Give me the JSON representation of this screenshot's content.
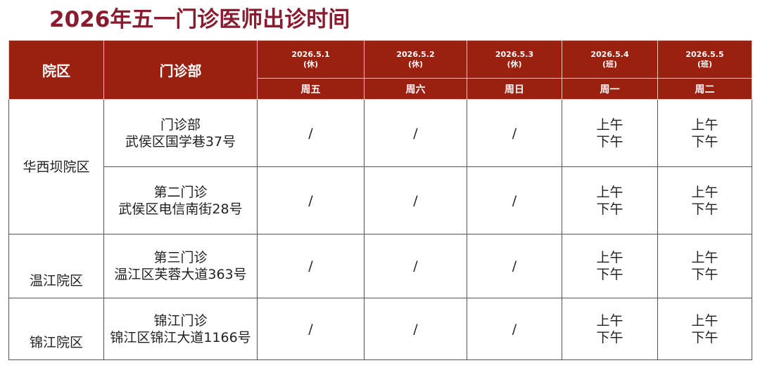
{
  "title": "2026年五一门诊医师出诊时间",
  "header": {
    "campus": "院区",
    "clinic": "门诊部",
    "days": [
      {
        "date": "2026.5.1",
        "status": "(休)",
        "weekday": "周五"
      },
      {
        "date": "2026.5.2",
        "status": "(休)",
        "weekday": "周六"
      },
      {
        "date": "2026.5.3",
        "status": "(休)",
        "weekday": "周日"
      },
      {
        "date": "2026.5.4",
        "status": "(班)",
        "weekday": "周一"
      },
      {
        "date": "2026.5.5",
        "status": "(班)",
        "weekday": "周二"
      }
    ]
  },
  "colors": {
    "title": "#8a1c30",
    "header_bg": "#9a2010"
  },
  "campuses": [
    {
      "name": "华西坝院区",
      "clinics": [
        {
          "name": "门诊部",
          "address": "武侯区国学巷37号",
          "cells": [
            "/",
            "/",
            "/",
            "上午\n下午",
            "上午\n下午"
          ]
        },
        {
          "name": "第二门诊",
          "address": "武侯区电信南街28号",
          "cells": [
            "/",
            "/",
            "/",
            "上午\n下午",
            "上午\n下午"
          ]
        }
      ]
    },
    {
      "name": "温江院区",
      "clinics": [
        {
          "name": "第三门诊",
          "address": "温江区芙蓉大道363号",
          "cells": [
            "/",
            "/",
            "/",
            "上午\n下午",
            "上午\n下午"
          ]
        }
      ]
    },
    {
      "name": "锦江院区",
      "clinics": [
        {
          "name": "锦江门诊",
          "address": "锦江区锦江大道1166号",
          "cells": [
            "/",
            "/",
            "/",
            "上午\n下午",
            "上午\n下午"
          ]
        }
      ]
    }
  ]
}
